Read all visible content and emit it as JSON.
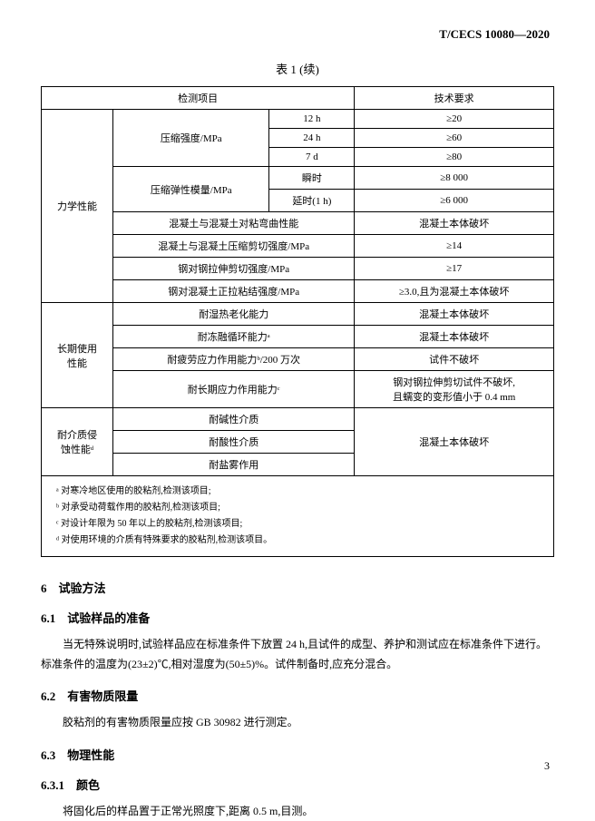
{
  "header_code": "T/CECS 10080—2020",
  "table_title": "表 1 (续)",
  "table_header": {
    "col_test": "检测项目",
    "col_req": "技术要求"
  },
  "mech": {
    "label": "力学性能",
    "comp_strength": {
      "label": "压缩强度/MPa",
      "rows": [
        {
          "cond": "12 h",
          "req": "≥20"
        },
        {
          "cond": "24 h",
          "req": "≥60"
        },
        {
          "cond": "7 d",
          "req": "≥80"
        }
      ]
    },
    "comp_modulus": {
      "label": "压缩弹性模量/MPa",
      "rows": [
        {
          "cond": "瞬时",
          "req": "≥8 000"
        },
        {
          "cond": "延时(1 h)",
          "req": "≥6 000"
        }
      ]
    },
    "span_rows": [
      {
        "name": "混凝土与混凝土对粘弯曲性能",
        "req": "混凝土本体破坏"
      },
      {
        "name": "混凝土与混凝土压缩剪切强度/MPa",
        "req": "≥14"
      },
      {
        "name": "钢对钢拉伸剪切强度/MPa",
        "req": "≥17"
      },
      {
        "name": "钢对混凝土正拉粘结强度/MPa",
        "req": "≥3.0,且为混凝土本体破坏"
      }
    ]
  },
  "longterm": {
    "label": "长期使用\n性能",
    "rows": [
      {
        "name": "耐湿热老化能力",
        "req": "混凝土本体破坏"
      },
      {
        "name": "耐冻融循环能力ᵃ",
        "req": "混凝土本体破坏"
      },
      {
        "name": "耐疲劳应力作用能力ᵇ/200 万次",
        "req": "试件不破坏"
      },
      {
        "name": "耐长期应力作用能力ᶜ",
        "req": "钢对钢拉伸剪切试件不破坏,\n且蠕变的变形值小于 0.4 mm"
      }
    ]
  },
  "medium": {
    "label": "耐介质侵\n蚀性能ᵈ",
    "rows": [
      {
        "name": "耐碱性介质"
      },
      {
        "name": "耐酸性介质"
      },
      {
        "name": "耐盐雾作用"
      }
    ],
    "req": "混凝土本体破坏"
  },
  "notes": {
    "a": "ᵃ 对寒冷地区使用的胶粘剂,检测该项目;",
    "b": "ᵇ 对承受动荷载作用的胶粘剂,检测该项目;",
    "c": "ᶜ 对设计年限为 50 年以上的胶粘剂,检测该项目;",
    "d": "ᵈ 对使用环境的介质有特殊要求的胶粘剂,检测该项目。"
  },
  "s6": {
    "title": "6　试验方法",
    "s61_title": "6.1　试验样品的准备",
    "s61_body": "当无特殊说明时,试验样品应在标准条件下放置 24 h,且试件的成型、养护和测试应在标准条件下进行。标准条件的温度为(23±2)℃,相对湿度为(50±5)%。试件制备时,应充分混合。",
    "s62_title": "6.2　有害物质限量",
    "s62_body": "胶粘剂的有害物质限量应按 GB 30982 进行测定。",
    "s63_title": "6.3　物理性能",
    "s631_title": "6.3.1　颜色",
    "s631_body": "将固化后的样品置于正常光照度下,距离 0.5 m,目测。"
  },
  "page_number": "3"
}
